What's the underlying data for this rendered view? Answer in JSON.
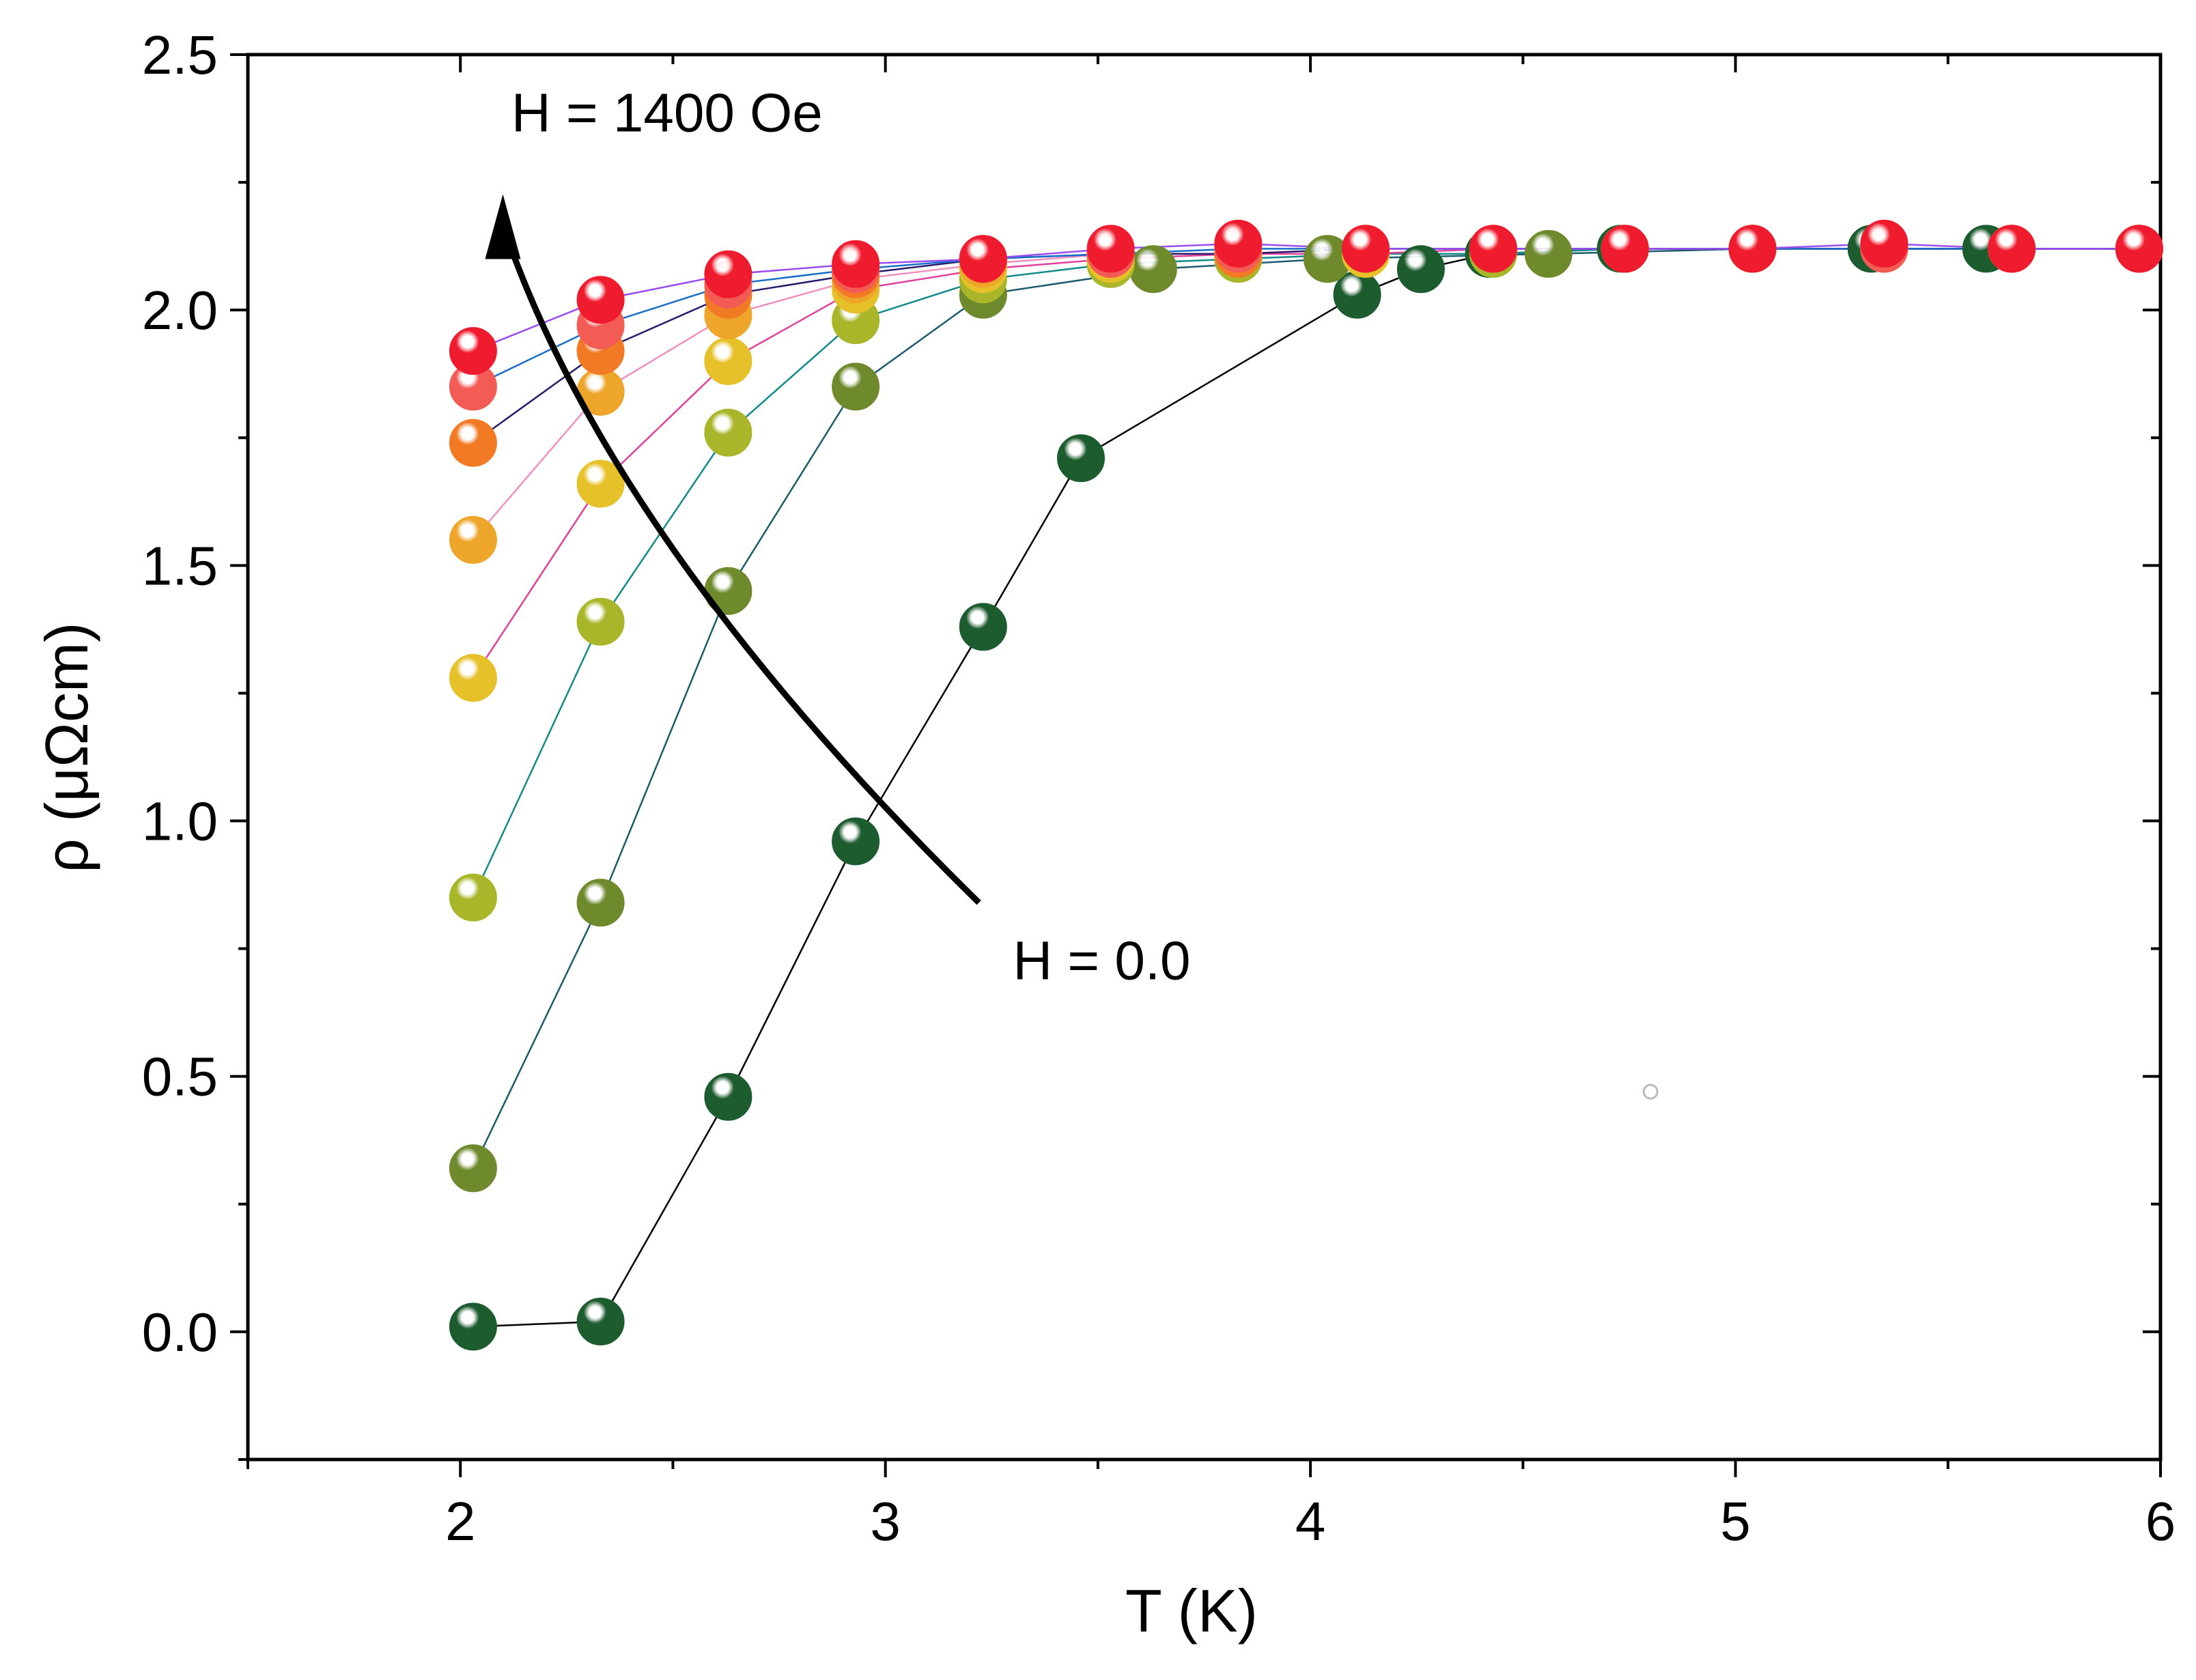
{
  "chart_data": {
    "type": "scatter",
    "title": "",
    "xlabel": "T (K)",
    "ylabel": "ρ (μΩcm)",
    "xlim": [
      1.5,
      6.0
    ],
    "ylim": [
      -0.25,
      2.5
    ],
    "xticks": [
      2,
      3,
      4,
      5,
      6
    ],
    "xtick_labels": [
      "2",
      "3",
      "4",
      "5",
      "6"
    ],
    "yticks": [
      0.0,
      0.5,
      1.0,
      1.5,
      2.0,
      2.5
    ],
    "ytick_labels": [
      "0.0",
      "0.5",
      "1.0",
      "1.5",
      "2.0",
      "2.5"
    ],
    "grid": false,
    "annotations": [
      {
        "text": "H = 1400 Oe",
        "x": 2.12,
        "y": 2.35
      },
      {
        "text": "H = 0.0",
        "x": 3.3,
        "y": 0.69
      }
    ],
    "arrow": {
      "from": [
        3.22,
        0.84
      ],
      "via": [
        2.35,
        1.55
      ],
      "to": [
        2.1,
        2.22
      ]
    },
    "series": [
      {
        "name": "s1",
        "marker_color": "#1d5c2e",
        "line_color": "#000000",
        "x": [
          2.03,
          2.33,
          2.63,
          2.93,
          3.23,
          3.46,
          4.11,
          4.26,
          4.42,
          4.73,
          5.04,
          5.32,
          5.59,
          5.95
        ],
        "y": [
          0.01,
          0.02,
          0.46,
          0.96,
          1.38,
          1.71,
          2.03,
          2.08,
          2.11,
          2.12,
          2.12,
          2.12,
          2.12,
          2.12
        ]
      },
      {
        "name": "s2",
        "marker_color": "#6e8a2c",
        "line_color": "#1a5c6e",
        "x": [
          2.03,
          2.33,
          2.63,
          2.93,
          3.23,
          3.63,
          4.04,
          4.56,
          5.04,
          5.65,
          5.95
        ],
        "y": [
          0.32,
          0.84,
          1.45,
          1.85,
          2.03,
          2.08,
          2.1,
          2.11,
          2.12,
          2.12,
          2.12
        ]
      },
      {
        "name": "s3",
        "marker_color": "#aab62a",
        "line_color": "#138a8a",
        "x": [
          2.03,
          2.33,
          2.63,
          2.93,
          3.23,
          3.53,
          3.83,
          4.13,
          4.43,
          4.74,
          5.04,
          5.35,
          5.65,
          5.95
        ],
        "y": [
          0.85,
          1.39,
          1.76,
          1.98,
          2.06,
          2.09,
          2.1,
          2.11,
          2.11,
          2.12,
          2.12,
          2.12,
          2.12,
          2.12
        ]
      },
      {
        "name": "s4",
        "marker_color": "#e6c12a",
        "line_color": "#e0409a",
        "x": [
          2.03,
          2.33,
          2.63,
          2.93,
          3.23,
          3.53,
          3.83,
          4.13,
          4.43,
          4.74,
          5.04,
          5.35,
          5.65,
          5.95
        ],
        "y": [
          1.28,
          1.66,
          1.9,
          2.04,
          2.08,
          2.1,
          2.11,
          2.11,
          2.12,
          2.12,
          2.12,
          2.12,
          2.12,
          2.12
        ]
      },
      {
        "name": "s5",
        "marker_color": "#eda52a",
        "line_color": "#f090c0",
        "x": [
          2.03,
          2.33,
          2.63,
          2.93,
          3.23,
          3.53,
          3.83,
          4.13,
          4.43,
          4.74,
          5.04,
          5.35,
          5.65,
          5.95
        ],
        "y": [
          1.55,
          1.84,
          1.99,
          2.06,
          2.09,
          2.11,
          2.11,
          2.12,
          2.12,
          2.12,
          2.12,
          2.12,
          2.12,
          2.12
        ]
      },
      {
        "name": "s6",
        "marker_color": "#f27a25",
        "line_color": "#2a1a6e",
        "x": [
          2.03,
          2.33,
          2.63,
          2.93,
          3.23,
          3.53,
          3.83,
          4.13,
          4.43,
          4.74,
          5.04,
          5.35,
          5.65,
          5.95
        ],
        "y": [
          1.74,
          1.92,
          2.03,
          2.07,
          2.1,
          2.11,
          2.11,
          2.12,
          2.12,
          2.12,
          2.12,
          2.12,
          2.12,
          2.12
        ]
      },
      {
        "name": "s7",
        "marker_color": "#f35b55",
        "line_color": "#1a6ec8",
        "x": [
          2.03,
          2.33,
          2.63,
          2.93,
          3.23,
          3.53,
          3.83,
          4.13,
          4.43,
          4.74,
          5.04,
          5.35,
          5.65,
          5.95
        ],
        "y": [
          1.85,
          1.97,
          2.05,
          2.08,
          2.1,
          2.11,
          2.12,
          2.12,
          2.12,
          2.12,
          2.12,
          2.12,
          2.12,
          2.12
        ]
      },
      {
        "name": "s8",
        "marker_color": "#ee1c2e",
        "line_color": "#9a4ef0",
        "x": [
          2.03,
          2.33,
          2.63,
          2.93,
          3.23,
          3.53,
          3.83,
          4.13,
          4.43,
          4.74,
          5.04,
          5.35,
          5.65,
          5.95
        ],
        "y": [
          1.92,
          2.02,
          2.07,
          2.09,
          2.1,
          2.12,
          2.13,
          2.12,
          2.12,
          2.12,
          2.12,
          2.13,
          2.12,
          2.12
        ]
      }
    ]
  }
}
